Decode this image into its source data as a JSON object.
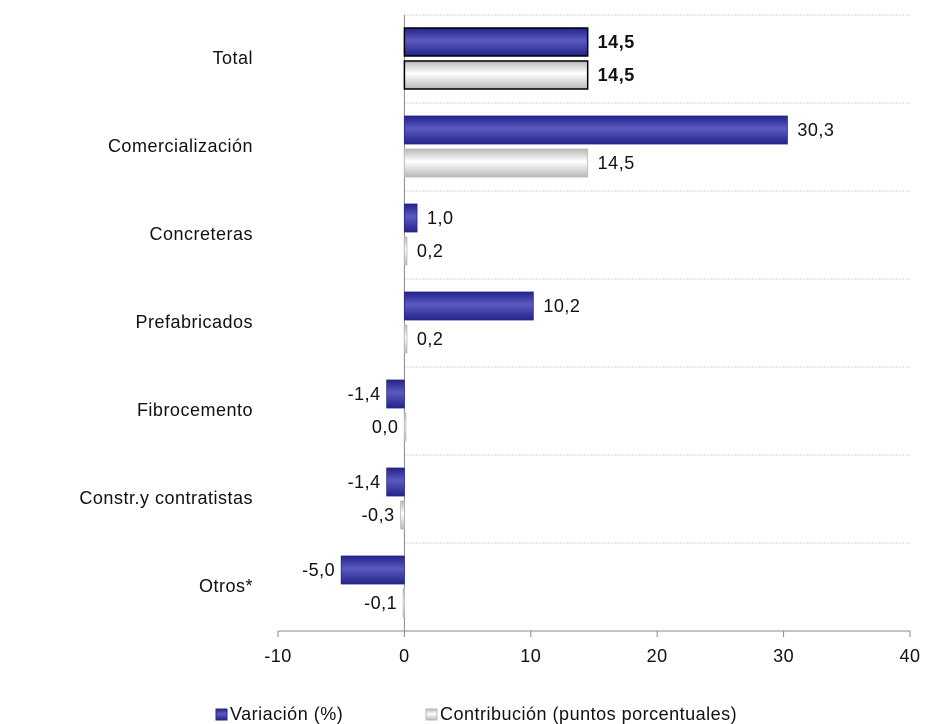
{
  "chart_data": {
    "type": "bar",
    "orientation": "horizontal",
    "categories": [
      "Total",
      "Comercialización",
      "Concreteras",
      "Prefabricados",
      "Fibrocemento",
      "Constr.y contratistas",
      "Otros*"
    ],
    "series": [
      {
        "name": "Variación (%)",
        "color": "#23238a",
        "label_color": "#3b3b9e",
        "values": [
          14.5,
          30.3,
          1.0,
          10.2,
          -1.4,
          -1.4,
          -5.0
        ],
        "value_labels": [
          "14,5",
          "30,3",
          "1,0",
          "10,2",
          "-1,4",
          "-1,4",
          "-5,0"
        ]
      },
      {
        "name": "Contribución (puntos porcentuales)",
        "color": "#b8b8b8",
        "label_color": "#404040",
        "values": [
          14.5,
          14.5,
          0.2,
          0.2,
          0.0,
          -0.3,
          -0.1
        ],
        "value_labels": [
          "14,5",
          "14,5",
          "0,2",
          "0,2",
          "0,0",
          "-0,3",
          "-0,1"
        ]
      }
    ],
    "xlim": [
      -10,
      40
    ],
    "xticks": [
      -10,
      0,
      10,
      20,
      30,
      40
    ],
    "grid": true,
    "legend": "bottom"
  }
}
